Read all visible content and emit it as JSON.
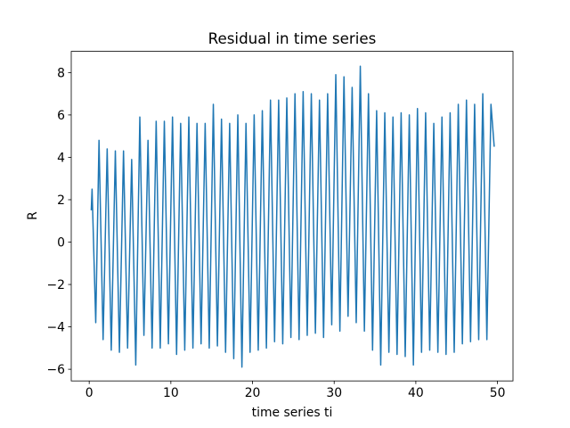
{
  "chart_data": {
    "type": "line",
    "title": "Residual in time series",
    "x_label": "time series ti",
    "y_label": "R",
    "color": "#1f77b4",
    "x": [
      0.25,
      0.35,
      0.8,
      1.2,
      1.7,
      2.2,
      2.7,
      3.2,
      3.7,
      4.2,
      4.7,
      5.2,
      5.7,
      6.2,
      6.7,
      7.2,
      7.7,
      8.2,
      8.7,
      9.2,
      9.7,
      10.2,
      10.7,
      11.2,
      11.7,
      12.2,
      12.7,
      13.2,
      13.7,
      14.2,
      14.7,
      15.2,
      15.7,
      16.2,
      16.7,
      17.2,
      17.7,
      18.2,
      18.7,
      19.2,
      19.7,
      20.2,
      20.7,
      21.2,
      21.7,
      22.2,
      22.7,
      23.2,
      23.7,
      24.2,
      24.7,
      25.2,
      25.7,
      26.2,
      26.7,
      27.2,
      27.7,
      28.2,
      28.7,
      29.2,
      29.7,
      30.2,
      30.7,
      31.2,
      31.7,
      32.2,
      32.7,
      33.2,
      33.7,
      34.2,
      34.7,
      35.2,
      35.7,
      36.2,
      36.7,
      37.2,
      37.7,
      38.2,
      38.7,
      39.2,
      39.7,
      40.2,
      40.7,
      41.2,
      41.7,
      42.2,
      42.7,
      43.2,
      43.7,
      44.2,
      44.7,
      45.2,
      45.7,
      46.2,
      46.7,
      47.2,
      47.7,
      48.2,
      48.7,
      49.2,
      49.6
    ],
    "values": [
      1.5,
      2.5,
      -3.8,
      4.8,
      -4.6,
      4.4,
      -5.1,
      4.3,
      -5.2,
      4.3,
      -5.0,
      3.9,
      -5.8,
      5.9,
      -4.4,
      4.8,
      -5.0,
      5.7,
      -5.0,
      5.7,
      -4.8,
      5.9,
      -5.3,
      5.6,
      -5.1,
      5.9,
      -5.0,
      5.6,
      -4.8,
      5.6,
      -5.0,
      6.5,
      -4.9,
      5.8,
      -5.2,
      5.6,
      -5.5,
      6.0,
      -5.9,
      5.6,
      -5.2,
      6.0,
      -5.1,
      6.2,
      -5.0,
      6.7,
      -4.7,
      6.7,
      -4.8,
      6.8,
      -4.5,
      7.0,
      -4.6,
      7.1,
      -4.4,
      7.0,
      -4.3,
      6.7,
      -4.5,
      7.0,
      -3.9,
      7.9,
      -4.2,
      7.8,
      -3.5,
      7.3,
      -3.8,
      8.3,
      -4.2,
      7.0,
      -5.1,
      6.2,
      -5.8,
      6.1,
      -5.2,
      5.9,
      -5.3,
      6.1,
      -5.4,
      6.0,
      -5.8,
      6.3,
      -5.2,
      6.1,
      -5.1,
      5.6,
      -5.2,
      5.9,
      -5.3,
      6.1,
      -5.2,
      6.5,
      -4.8,
      6.7,
      -4.7,
      6.5,
      -4.6,
      7.0,
      -4.6,
      6.5,
      4.5
    ],
    "xlim": [
      -2.2,
      51.9
    ],
    "ylim": [
      -6.55,
      9.0
    ],
    "xticks": [
      0,
      10,
      20,
      30,
      40,
      50
    ],
    "yticks": [
      {
        "value": -6,
        "label": "−6"
      },
      {
        "value": -4,
        "label": "−4"
      },
      {
        "value": -2,
        "label": "−2"
      },
      0,
      2,
      4,
      6,
      8
    ]
  }
}
